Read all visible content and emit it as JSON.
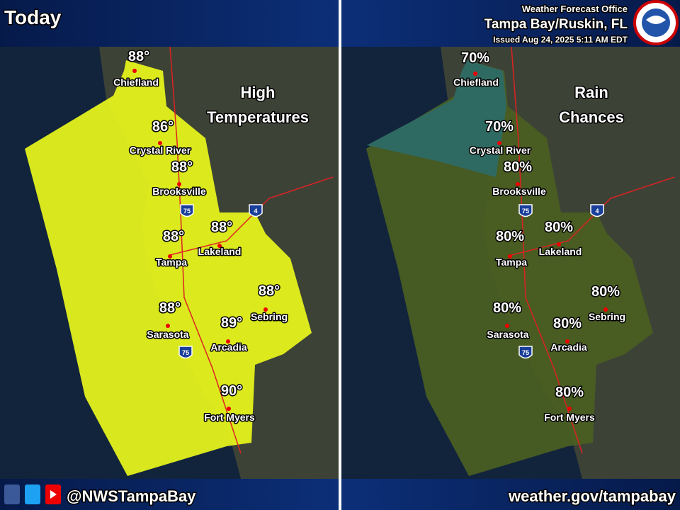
{
  "header": {
    "title": "Today",
    "office": "Weather Forecast Office",
    "location": "Tampa Bay/Ruskin, FL",
    "issued": "Issued Aug 24, 2025 5:11 AM EDT"
  },
  "left_panel": {
    "title_lines": [
      "High",
      "Temperatures"
    ],
    "cities": [
      {
        "name": "Chiefland",
        "value": "88°"
      },
      {
        "name": "Crystal River",
        "value": "86°"
      },
      {
        "name": "Brooksville",
        "value": "88°"
      },
      {
        "name": "Tampa",
        "value": "88°"
      },
      {
        "name": "Lakeland",
        "value": "88°"
      },
      {
        "name": "Sebring",
        "value": "88°"
      },
      {
        "name": "Sarasota",
        "value": "88°"
      },
      {
        "name": "Arcadia",
        "value": "89°"
      },
      {
        "name": "Fort Myers",
        "value": "90°"
      }
    ]
  },
  "right_panel": {
    "title_lines": [
      "Rain",
      "Chances"
    ],
    "cities": [
      {
        "name": "Chiefland",
        "value": "70%"
      },
      {
        "name": "Crystal River",
        "value": "70%"
      },
      {
        "name": "Brooksville",
        "value": "80%"
      },
      {
        "name": "Tampa",
        "value": "80%"
      },
      {
        "name": "Lakeland",
        "value": "80%"
      },
      {
        "name": "Sebring",
        "value": "80%"
      },
      {
        "name": "Sarasota",
        "value": "80%"
      },
      {
        "name": "Arcadia",
        "value": "80%"
      },
      {
        "name": "Fort Myers",
        "value": "80%"
      }
    ]
  },
  "shields": [
    "75",
    "4",
    "75",
    "75",
    "4",
    "75"
  ],
  "footer": {
    "handle": "@NWSTampaBay",
    "url": "weather.gov/tampabay"
  }
}
